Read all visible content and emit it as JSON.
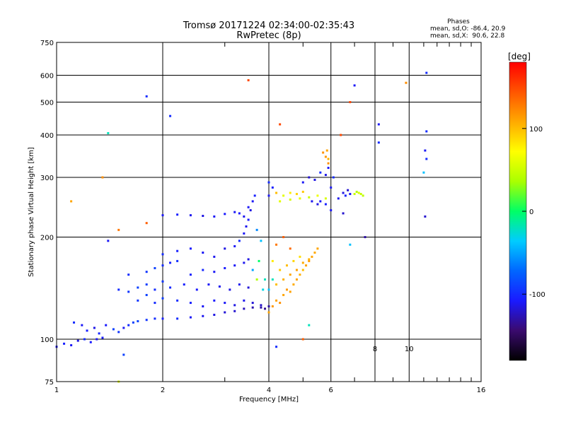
{
  "header": {
    "title_line1": "Tromsø 20171224 02:34:00-02:35:43",
    "title_line2": "RwPretec (8p)",
    "phases_heading": "Phases",
    "phases_line1": "mean, sd,O: -86.4, 20.9",
    "phases_line2": "mean, sd,X:  90.6, 22.8"
  },
  "chart_data": {
    "type": "scatter",
    "xlabel": "Frequency [MHz]",
    "ylabel": "Stationary phase Virtual Height [km]",
    "xscale": "log",
    "yscale": "log",
    "xlim": [
      1,
      16
    ],
    "ylim": [
      75,
      750
    ],
    "x_ticks": [
      1,
      2,
      4,
      6,
      16
    ],
    "x_tick_labels": [
      "1",
      "2",
      "4",
      "6",
      "16"
    ],
    "x_grid_extra": [
      8,
      10
    ],
    "x_grid_extra_labels": [
      "8",
      "10"
    ],
    "x_minor_ticks": [
      3,
      5,
      7,
      9,
      11,
      12,
      13,
      14,
      15
    ],
    "y_ticks": [
      75,
      100,
      200,
      300,
      400,
      500,
      600,
      750
    ],
    "y_tick_labels": [
      "75",
      "100",
      "200",
      "300",
      "400",
      "500",
      "600",
      "750"
    ],
    "grid": true,
    "colorbar": {
      "label": "[deg]",
      "range": [
        -180,
        180
      ],
      "ticks": [
        100,
        0,
        -100
      ],
      "tick_labels": [
        "100",
        "0",
        "-100"
      ],
      "colors": [
        "#000000",
        "#3a0a6e",
        "#1a1aff",
        "#0066ff",
        "#00ccff",
        "#00ff66",
        "#aaff00",
        "#ffff00",
        "#ffaa00",
        "#ff5500",
        "#ff0000"
      ]
    },
    "series": [
      {
        "points": [
          [
            1.0,
            95,
            -110
          ],
          [
            1.05,
            97,
            -105
          ],
          [
            1.1,
            96,
            -110
          ],
          [
            1.15,
            99,
            -115
          ],
          [
            1.2,
            100,
            -100
          ],
          [
            1.25,
            98,
            -108
          ],
          [
            1.3,
            100,
            -112
          ],
          [
            1.35,
            101,
            -106
          ],
          [
            1.12,
            112,
            -100
          ],
          [
            1.18,
            110,
            -110
          ],
          [
            1.22,
            106,
            -105
          ],
          [
            1.28,
            108,
            -114
          ],
          [
            1.32,
            104,
            -102
          ],
          [
            1.38,
            110,
            -108
          ],
          [
            1.45,
            107,
            -90
          ],
          [
            1.5,
            105,
            -95
          ],
          [
            1.55,
            108,
            -110
          ],
          [
            1.6,
            110,
            -100
          ],
          [
            1.65,
            112,
            -90
          ],
          [
            1.7,
            113,
            -88
          ],
          [
            1.8,
            114,
            -95
          ],
          [
            1.9,
            115,
            -100
          ],
          [
            2.0,
            115,
            -105
          ],
          [
            2.2,
            115,
            -100
          ],
          [
            2.4,
            116,
            -110
          ],
          [
            2.6,
            117,
            -112
          ],
          [
            2.8,
            118,
            -115
          ],
          [
            3.0,
            120,
            -118
          ],
          [
            3.2,
            121,
            -120
          ],
          [
            3.4,
            123,
            -125
          ],
          [
            3.6,
            124,
            -128
          ],
          [
            3.8,
            124,
            -130
          ],
          [
            3.9,
            123,
            -135
          ],
          [
            4.0,
            125,
            -130
          ],
          [
            1.7,
            130,
            -95
          ],
          [
            1.8,
            135,
            -90
          ],
          [
            1.9,
            128,
            -100
          ],
          [
            2.0,
            132,
            -92
          ],
          [
            2.2,
            130,
            -100
          ],
          [
            2.4,
            128,
            -105
          ],
          [
            2.6,
            125,
            -110
          ],
          [
            2.8,
            130,
            -108
          ],
          [
            3.0,
            128,
            -110
          ],
          [
            3.2,
            126,
            -115
          ],
          [
            3.4,
            130,
            -112
          ],
          [
            3.6,
            128,
            -118
          ],
          [
            3.8,
            126,
            -122
          ],
          [
            1.5,
            140,
            -100
          ],
          [
            1.6,
            138,
            -95
          ],
          [
            1.7,
            142,
            -90
          ],
          [
            1.8,
            145,
            -92
          ],
          [
            1.9,
            140,
            -100
          ],
          [
            2.0,
            148,
            -95
          ],
          [
            2.1,
            142,
            -102
          ],
          [
            2.3,
            145,
            -105
          ],
          [
            2.5,
            140,
            -108
          ],
          [
            2.7,
            145,
            -110
          ],
          [
            2.9,
            143,
            -112
          ],
          [
            3.1,
            140,
            -115
          ],
          [
            3.3,
            145,
            -112
          ],
          [
            3.5,
            142,
            -118
          ],
          [
            1.6,
            155,
            -100
          ],
          [
            1.8,
            158,
            -95
          ],
          [
            1.9,
            162,
            -90
          ],
          [
            2.0,
            165,
            -100
          ],
          [
            2.1,
            168,
            -105
          ],
          [
            2.2,
            170,
            -98
          ],
          [
            2.4,
            155,
            -105
          ],
          [
            2.6,
            160,
            -102
          ],
          [
            2.8,
            158,
            -110
          ],
          [
            3.0,
            162,
            -108
          ],
          [
            3.2,
            165,
            -110
          ],
          [
            3.4,
            168,
            -112
          ],
          [
            3.5,
            172,
            -115
          ],
          [
            2.0,
            178,
            -100
          ],
          [
            2.2,
            182,
            -105
          ],
          [
            2.4,
            185,
            -108
          ],
          [
            2.6,
            180,
            -110
          ],
          [
            2.8,
            175,
            -112
          ],
          [
            3.0,
            185,
            -115
          ],
          [
            3.2,
            188,
            -110
          ],
          [
            3.3,
            195,
            -100
          ],
          [
            3.4,
            205,
            -110
          ],
          [
            3.45,
            215,
            -112
          ],
          [
            3.5,
            225,
            -108
          ],
          [
            3.55,
            240,
            -115
          ],
          [
            3.6,
            255,
            -110
          ],
          [
            3.65,
            265,
            -105
          ],
          [
            3.5,
            245,
            -110
          ],
          [
            3.4,
            230,
            -112
          ],
          [
            3.3,
            235,
            -108
          ],
          [
            2.0,
            232,
            -110
          ],
          [
            2.2,
            233,
            -105
          ],
          [
            2.4,
            232,
            -112
          ],
          [
            2.6,
            231,
            -115
          ],
          [
            2.8,
            230,
            -110
          ],
          [
            3.0,
            234,
            -108
          ],
          [
            3.2,
            237,
            -110
          ],
          [
            3.7,
            210,
            -60
          ],
          [
            3.8,
            195,
            -40
          ],
          [
            3.9,
            150,
            -20
          ],
          [
            3.7,
            150,
            40
          ],
          [
            3.85,
            140,
            -30
          ],
          [
            3.6,
            160,
            -50
          ],
          [
            3.75,
            170,
            0
          ],
          [
            4.0,
            120,
            110
          ],
          [
            4.1,
            125,
            115
          ],
          [
            4.2,
            130,
            112
          ],
          [
            4.3,
            128,
            118
          ],
          [
            4.4,
            135,
            110
          ],
          [
            4.5,
            140,
            115
          ],
          [
            4.6,
            138,
            112
          ],
          [
            4.7,
            145,
            108
          ],
          [
            4.8,
            150,
            110
          ],
          [
            4.9,
            155,
            105
          ],
          [
            5.0,
            160,
            100
          ],
          [
            5.1,
            165,
            112
          ],
          [
            5.2,
            170,
            115
          ],
          [
            5.3,
            175,
            110
          ],
          [
            5.4,
            180,
            108
          ],
          [
            5.5,
            185,
            110
          ],
          [
            4.2,
            145,
            100
          ],
          [
            4.4,
            150,
            105
          ],
          [
            4.6,
            155,
            110
          ],
          [
            4.8,
            160,
            112
          ],
          [
            5.0,
            168,
            108
          ],
          [
            5.2,
            172,
            105
          ],
          [
            4.3,
            160,
            95
          ],
          [
            4.5,
            165,
            100
          ],
          [
            4.7,
            170,
            90
          ],
          [
            4.9,
            175,
            85
          ],
          [
            4.1,
            170,
            80
          ],
          [
            4.0,
            140,
            -40
          ],
          [
            4.1,
            150,
            -20
          ],
          [
            4.2,
            190,
            130
          ],
          [
            4.4,
            200,
            140
          ],
          [
            4.6,
            185,
            135
          ],
          [
            4.0,
            265,
            -110
          ],
          [
            4.1,
            280,
            -105
          ],
          [
            4.0,
            290,
            -100
          ],
          [
            4.2,
            270,
            100
          ],
          [
            4.4,
            265,
            60
          ],
          [
            4.6,
            270,
            80
          ],
          [
            4.8,
            268,
            90
          ],
          [
            5.0,
            272,
            95
          ],
          [
            4.3,
            255,
            60
          ],
          [
            4.6,
            258,
            55
          ],
          [
            4.9,
            260,
            60
          ],
          [
            5.2,
            262,
            50
          ],
          [
            5.5,
            265,
            65
          ],
          [
            5.8,
            260,
            55
          ],
          [
            5.0,
            290,
            -110
          ],
          [
            5.2,
            300,
            -120
          ],
          [
            5.4,
            295,
            -115
          ],
          [
            5.6,
            310,
            -100
          ],
          [
            5.8,
            305,
            -115
          ],
          [
            5.9,
            320,
            -110
          ],
          [
            5.8,
            250,
            -105
          ],
          [
            5.6,
            255,
            -110
          ],
          [
            5.5,
            250,
            -115
          ],
          [
            5.3,
            255,
            -112
          ],
          [
            5.9,
            330,
            120
          ],
          [
            5.8,
            345,
            115
          ],
          [
            5.7,
            355,
            118
          ],
          [
            5.85,
            360,
            110
          ],
          [
            5.9,
            340,
            105
          ],
          [
            6.1,
            300,
            -100
          ],
          [
            6.0,
            280,
            -110
          ],
          [
            6.3,
            260,
            -112
          ],
          [
            6.5,
            270,
            -115
          ],
          [
            6.6,
            265,
            -105
          ],
          [
            6.7,
            275,
            -120
          ],
          [
            6.8,
            268,
            -110
          ],
          [
            7.0,
            268,
            50
          ],
          [
            7.2,
            270,
            55
          ],
          [
            7.4,
            265,
            45
          ],
          [
            7.1,
            272,
            40
          ],
          [
            7.3,
            268,
            48
          ],
          [
            1.1,
            255,
            110
          ],
          [
            1.35,
            300,
            120
          ],
          [
            1.5,
            210,
            130
          ],
          [
            1.8,
            220,
            140
          ],
          [
            1.8,
            520,
            -100
          ],
          [
            2.1,
            455,
            -100
          ],
          [
            1.4,
            405,
            -20
          ],
          [
            1.4,
            195,
            -110
          ],
          [
            3.5,
            580,
            150
          ],
          [
            4.3,
            430,
            150
          ],
          [
            6.4,
            400,
            150
          ],
          [
            6.8,
            500,
            150
          ],
          [
            7.0,
            560,
            -110
          ],
          [
            8.2,
            430,
            -110
          ],
          [
            8.2,
            380,
            -100
          ],
          [
            9.8,
            570,
            120
          ],
          [
            11.2,
            610,
            -100
          ],
          [
            11.2,
            410,
            -100
          ],
          [
            11.1,
            360,
            -110
          ],
          [
            11.2,
            340,
            -100
          ],
          [
            11.0,
            310,
            -40
          ],
          [
            11.1,
            230,
            -120
          ],
          [
            7.5,
            200,
            -130
          ],
          [
            6.8,
            190,
            -40
          ],
          [
            6.5,
            235,
            -120
          ],
          [
            6.0,
            240,
            -110
          ],
          [
            5.2,
            110,
            -20
          ],
          [
            5.0,
            100,
            140
          ],
          [
            4.2,
            95,
            -100
          ],
          [
            1.5,
            75,
            60
          ],
          [
            1.55,
            90,
            -90
          ]
        ]
      }
    ]
  }
}
